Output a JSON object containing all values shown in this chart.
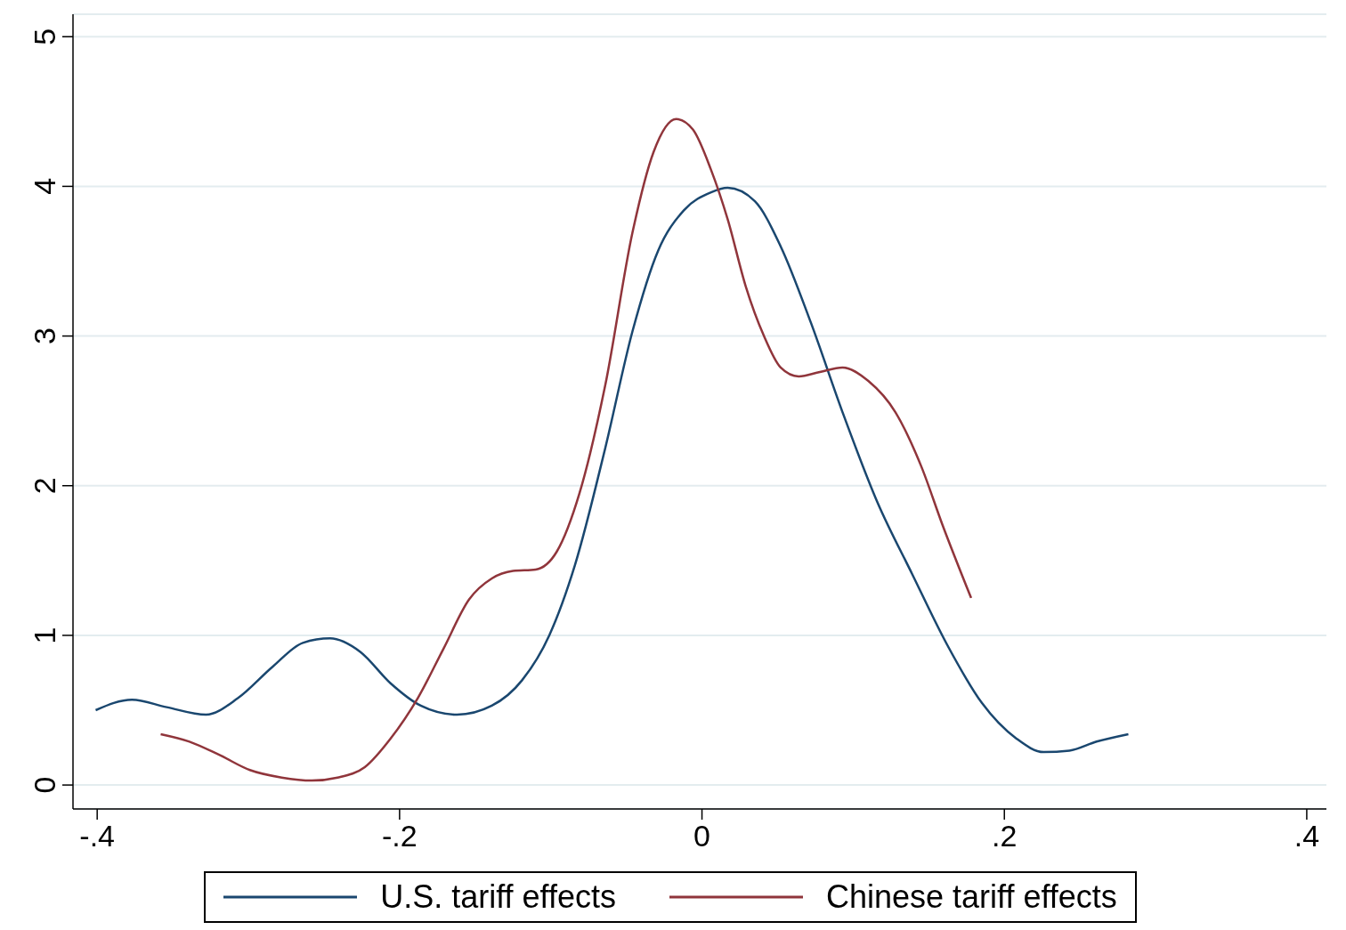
{
  "chart_data": {
    "type": "line",
    "xlim": [
      -0.416,
      0.413
    ],
    "ylim": [
      -0.16,
      5.15
    ],
    "xticks": [
      {
        "value": -0.4,
        "label": "-.4"
      },
      {
        "value": -0.2,
        "label": "-.2"
      },
      0,
      {
        "value": 0.2,
        "label": ".2"
      },
      {
        "value": 0.4,
        "label": ".4"
      }
    ],
    "yticks": [
      0,
      1,
      2,
      3,
      4,
      5
    ],
    "grid": "y",
    "legend": "bottom",
    "marker": "none",
    "line_style": "solid",
    "series": [
      {
        "name": "U.S. tariff effects",
        "color": "#1a476f",
        "x": [
          -0.401,
          -0.377,
          -0.354,
          -0.328,
          -0.307,
          -0.284,
          -0.264,
          -0.246,
          -0.226,
          -0.206,
          -0.186,
          -0.162,
          -0.139,
          -0.119,
          -0.101,
          -0.084,
          -0.064,
          -0.046,
          -0.029,
          -0.012,
          0.006,
          0.017,
          0.035,
          0.052,
          0.072,
          0.093,
          0.116,
          0.139,
          0.162,
          0.185,
          0.208,
          0.226,
          0.243,
          0.261,
          0.282
        ],
        "values": [
          0.5,
          0.57,
          0.52,
          0.47,
          0.58,
          0.79,
          0.95,
          0.98,
          0.89,
          0.68,
          0.53,
          0.47,
          0.53,
          0.7,
          1.0,
          1.47,
          2.25,
          3.03,
          3.57,
          3.84,
          3.96,
          3.99,
          3.9,
          3.6,
          3.09,
          2.49,
          1.89,
          1.41,
          0.94,
          0.55,
          0.31,
          0.22,
          0.23,
          0.29,
          0.34
        ]
      },
      {
        "name": "Chinese tariff effects",
        "color": "#90353b",
        "x": [
          -0.358,
          -0.339,
          -0.319,
          -0.299,
          -0.278,
          -0.258,
          -0.241,
          -0.223,
          -0.206,
          -0.188,
          -0.171,
          -0.154,
          -0.139,
          -0.125,
          -0.11,
          -0.096,
          -0.081,
          -0.064,
          -0.046,
          -0.032,
          -0.017,
          -0.006,
          0.006,
          0.017,
          0.029,
          0.041,
          0.052,
          0.064,
          0.078,
          0.093,
          0.11,
          0.128,
          0.145,
          0.159,
          0.178
        ],
        "values": [
          0.34,
          0.29,
          0.2,
          0.1,
          0.05,
          0.03,
          0.05,
          0.12,
          0.31,
          0.58,
          0.91,
          1.24,
          1.38,
          1.43,
          1.44,
          1.56,
          1.95,
          2.67,
          3.69,
          4.23,
          4.45,
          4.38,
          4.11,
          3.78,
          3.33,
          3.0,
          2.79,
          2.73,
          2.76,
          2.79,
          2.7,
          2.49,
          2.13,
          1.74,
          1.25
        ]
      }
    ]
  }
}
